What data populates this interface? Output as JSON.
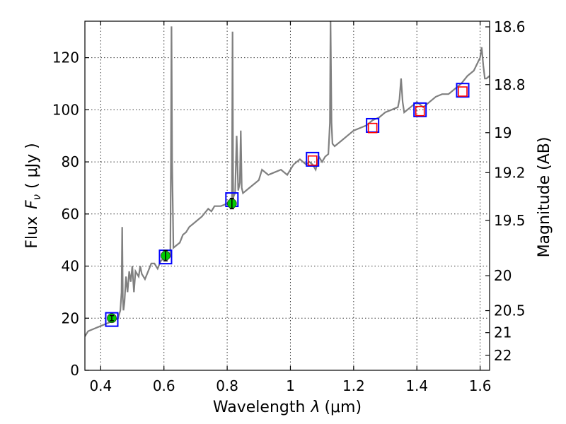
{
  "chart_data": {
    "type": "line",
    "title": "",
    "xlabel_prefix": "Wavelength",
    "xlabel_symbol": "λ",
    "xlabel_unit": "(μm)",
    "ylabel_prefix": "Flux",
    "ylabel_symbol": "F",
    "ylabel_subscript": "ν",
    "ylabel_unit": "( μJy )",
    "y2label": "Magnitude (AB)",
    "xlim": [
      0.35,
      1.63
    ],
    "ylim": [
      0,
      134
    ],
    "xticks": [
      "0.4",
      "0.6",
      "0.8",
      "1",
      "1.2",
      "1.4",
      "1.6"
    ],
    "xtick_values": [
      0.4,
      0.6,
      0.8,
      1.0,
      1.2,
      1.4,
      1.6
    ],
    "yticks": [
      "0",
      "20",
      "40",
      "60",
      "80",
      "100",
      "120"
    ],
    "ytick_values": [
      0,
      20,
      40,
      60,
      80,
      100,
      120
    ],
    "y2ticks": [
      "18.6",
      "18.8",
      "19",
      "19.2",
      "19.5",
      "20",
      "20.5",
      "21",
      "22"
    ],
    "y2tick_values": [
      18.6,
      18.8,
      19.0,
      19.2,
      19.5,
      20.0,
      20.5,
      21.0,
      22.0
    ],
    "grid": true,
    "colors": {
      "spectrum": "#808080",
      "model_box": "#0000ff",
      "model_square": "#ff0000",
      "observed": "#00cc00"
    },
    "series": [
      {
        "type": "line",
        "x": [
          0.35,
          0.36,
          0.38,
          0.4,
          0.42,
          0.44,
          0.455,
          0.462,
          0.466,
          0.468,
          0.47,
          0.472,
          0.475,
          0.48,
          0.485,
          0.49,
          0.495,
          0.5,
          0.505,
          0.51,
          0.52,
          0.525,
          0.53,
          0.54,
          0.55,
          0.56,
          0.57,
          0.58,
          0.59,
          0.6,
          0.61,
          0.615,
          0.62,
          0.622,
          0.624,
          0.626,
          0.63,
          0.64,
          0.65,
          0.66,
          0.67,
          0.68,
          0.69,
          0.7,
          0.72,
          0.74,
          0.75,
          0.76,
          0.78,
          0.8,
          0.81,
          0.815,
          0.817,
          0.819,
          0.821,
          0.825,
          0.83,
          0.835,
          0.84,
          0.843,
          0.846,
          0.85,
          0.87,
          0.89,
          0.9,
          0.91,
          0.93,
          0.95,
          0.97,
          0.99,
          1.01,
          1.03,
          1.05,
          1.06,
          1.07,
          1.08,
          1.09,
          1.1,
          1.11,
          1.12,
          1.125,
          1.127,
          1.13,
          1.133,
          1.14,
          1.16,
          1.18,
          1.2,
          1.22,
          1.24,
          1.25,
          1.26,
          1.28,
          1.3,
          1.32,
          1.34,
          1.345,
          1.35,
          1.355,
          1.36,
          1.38,
          1.4,
          1.42,
          1.44,
          1.46,
          1.48,
          1.5,
          1.52,
          1.54,
          1.56,
          1.58,
          1.6,
          1.605,
          1.61,
          1.615,
          1.62,
          1.63
        ],
        "y": [
          13,
          15,
          16,
          17,
          18,
          19,
          20,
          23,
          30,
          55,
          28,
          23,
          26,
          36,
          30,
          38,
          34,
          40,
          30,
          38,
          36,
          40,
          37,
          35,
          38,
          41,
          41,
          39,
          42,
          43,
          44,
          45,
          44,
          80,
          132,
          80,
          47,
          48,
          49,
          52,
          53,
          55,
          56,
          57,
          59,
          62,
          61,
          63,
          63,
          64,
          63,
          66,
          130,
          66,
          67,
          68,
          90,
          69,
          72,
          92,
          70,
          68,
          70,
          72,
          73,
          77,
          75,
          76,
          77,
          75,
          79,
          81,
          79,
          80,
          79,
          77,
          82,
          80,
          82,
          83,
          95,
          134,
          95,
          87,
          86,
          88,
          90,
          92,
          93,
          94,
          95,
          96,
          97,
          99,
          100,
          101,
          104,
          112,
          103,
          99,
          101,
          103,
          101,
          103,
          105,
          106,
          106,
          108,
          110,
          113,
          115,
          120,
          124,
          117,
          112,
          112,
          113
        ]
      },
      {
        "type": "box",
        "name_color": "model_box",
        "x": [
          0.435,
          0.605,
          0.815,
          1.07,
          1.26,
          1.41,
          1.545
        ],
        "y": [
          19.5,
          43.5,
          65.5,
          81.0,
          94.0,
          100.0,
          107.5
        ]
      },
      {
        "type": "square",
        "name_color": "model_square",
        "x": [
          1.07,
          1.26,
          1.41,
          1.545
        ],
        "y": [
          80.5,
          93.0,
          99.5,
          107.0
        ]
      },
      {
        "type": "point",
        "name_color": "observed",
        "x": [
          0.435,
          0.605,
          0.815
        ],
        "y": [
          20.0,
          44.0,
          64.0
        ],
        "yerr": [
          1.0,
          2.0,
          2.0
        ]
      }
    ]
  }
}
